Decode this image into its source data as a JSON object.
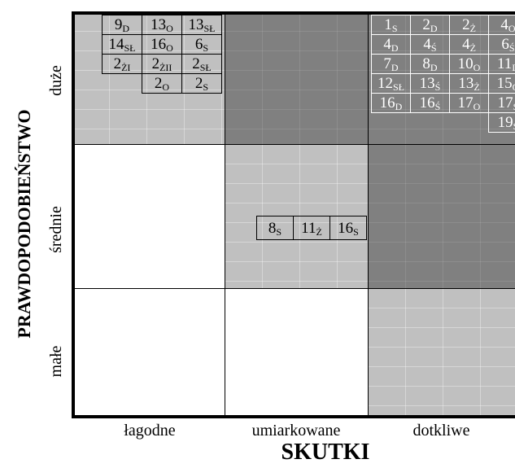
{
  "axes": {
    "x_title": "SKUTKI",
    "y_title": "PRAWDOPODOBIEŃSTWO",
    "x_categories": [
      "łagodne",
      "umiarkowane",
      "dotkliwe"
    ],
    "y_categories": [
      "duże",
      "średnie",
      "małe"
    ]
  },
  "colors": {
    "light_gray": "#c0c0c0",
    "dark_gray": "#808080",
    "white": "#ffffff"
  },
  "zones": [
    {
      "row": 0,
      "col": 0,
      "fill": "light_gray"
    },
    {
      "row": 0,
      "col": 1,
      "fill": "dark_gray"
    },
    {
      "row": 0,
      "col": 2,
      "fill": "dark_gray"
    },
    {
      "row": 1,
      "col": 0,
      "fill": "white"
    },
    {
      "row": 1,
      "col": 1,
      "fill": "light_gray"
    },
    {
      "row": 1,
      "col": 2,
      "fill": "dark_gray"
    },
    {
      "row": 2,
      "col": 0,
      "fill": "white"
    },
    {
      "row": 2,
      "col": 1,
      "fill": "white"
    },
    {
      "row": 2,
      "col": 2,
      "fill": "light_gray"
    }
  ],
  "groups": [
    {
      "zone": "duże-łagodne",
      "dark": false,
      "rows": [
        [
          {
            "n": "9",
            "s": "D"
          },
          {
            "n": "13",
            "s": "O"
          },
          {
            "n": "13",
            "s": "SŁ"
          }
        ],
        [
          {
            "n": "14",
            "s": "SŁ"
          },
          {
            "n": "16",
            "s": "O"
          },
          {
            "n": "6",
            "s": "S"
          }
        ],
        [
          {
            "n": "2",
            "s": "ŻI"
          },
          {
            "n": "2",
            "s": "ŻII"
          },
          {
            "n": "2",
            "s": "SŁ"
          }
        ],
        [
          null,
          {
            "n": "2",
            "s": "O"
          },
          {
            "n": "2",
            "s": "S"
          }
        ]
      ]
    },
    {
      "zone": "średnie-umiarkowane",
      "dark": false,
      "rows": [
        [
          {
            "n": "8",
            "s": "S"
          },
          {
            "n": "11",
            "s": "Ż"
          },
          {
            "n": "16",
            "s": "S"
          }
        ]
      ]
    },
    {
      "zone": "duże-dotkliwe",
      "dark": true,
      "rows": [
        [
          {
            "n": "1",
            "s": "S"
          },
          {
            "n": "2",
            "s": "D"
          },
          {
            "n": "2",
            "s": "Ż"
          },
          {
            "n": "4",
            "s": "O"
          }
        ],
        [
          {
            "n": "4",
            "s": "D"
          },
          {
            "n": "4",
            "s": "Ś"
          },
          {
            "n": "4",
            "s": "Ż"
          },
          {
            "n": "6",
            "s": "Ś"
          }
        ],
        [
          {
            "n": "7",
            "s": "D"
          },
          {
            "n": "8",
            "s": "D"
          },
          {
            "n": "10",
            "s": "O"
          },
          {
            "n": "11",
            "s": "D"
          }
        ],
        [
          {
            "n": "12",
            "s": "SŁ"
          },
          {
            "n": "13",
            "s": "Ś"
          },
          {
            "n": "13",
            "s": "Ż"
          },
          {
            "n": "15",
            "s": "O"
          }
        ],
        [
          {
            "n": "16",
            "s": "D"
          },
          {
            "n": "16",
            "s": "Ś"
          },
          {
            "n": "17",
            "s": "O"
          },
          {
            "n": "17",
            "s": "Ś"
          }
        ],
        [
          null,
          null,
          null,
          {
            "n": "19",
            "s": "S"
          }
        ]
      ]
    }
  ]
}
